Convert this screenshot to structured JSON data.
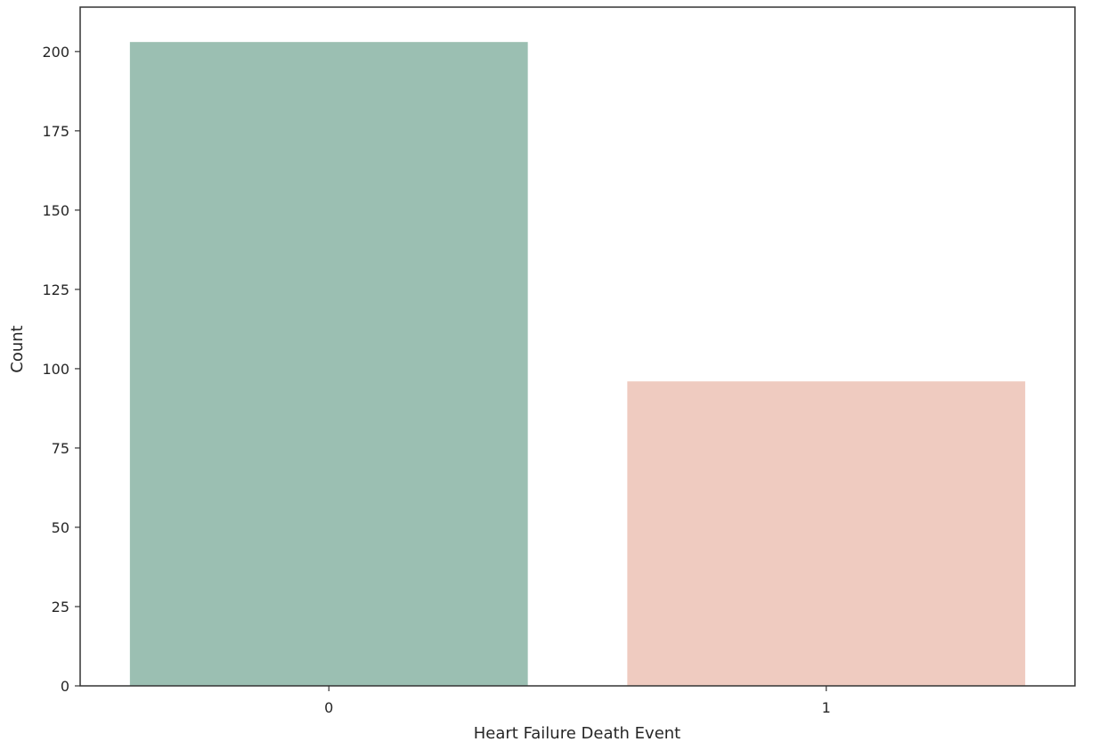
{
  "chart_data": {
    "type": "bar",
    "categories": [
      "0",
      "1"
    ],
    "values": [
      203,
      96
    ],
    "colors": [
      "#9bbfb2",
      "#efcbc0"
    ],
    "xlabel": "Heart Failure Death Event",
    "ylabel": "Count",
    "ylim": [
      0,
      214
    ],
    "yticks": [
      0,
      25,
      50,
      75,
      100,
      125,
      150,
      175,
      200
    ],
    "grid": false,
    "legend": "none"
  }
}
